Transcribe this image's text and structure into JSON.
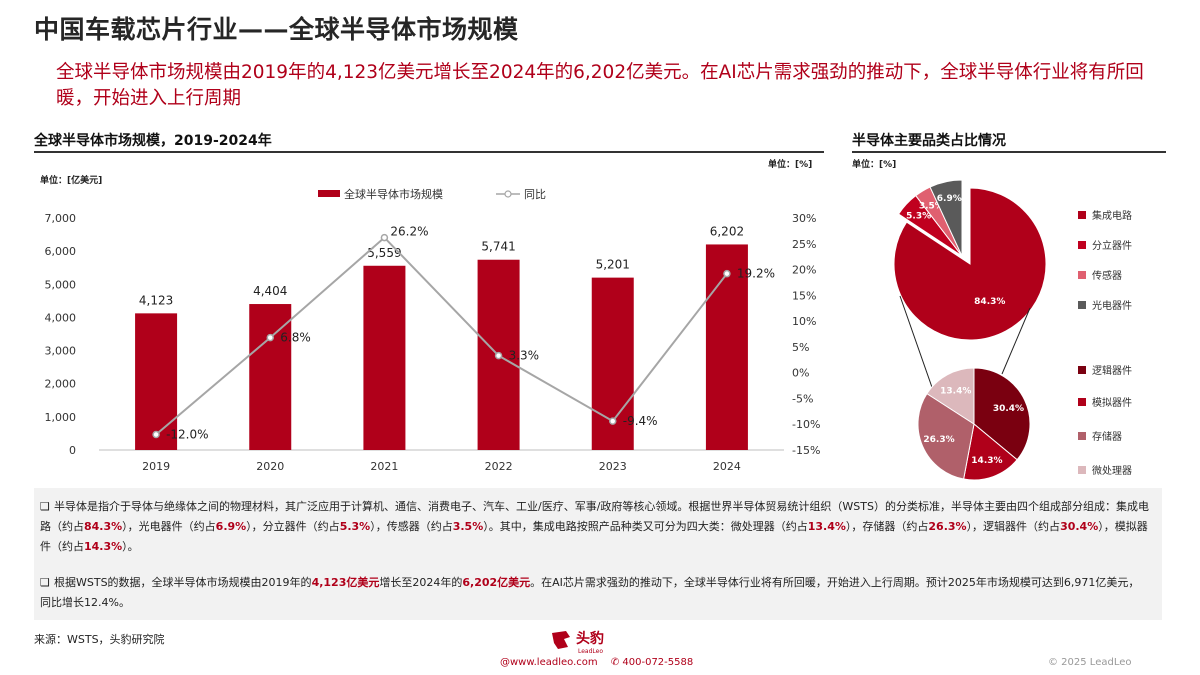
{
  "page": {
    "title": "中国车载芯片行业——全球半导体市场规模",
    "subtitle": "全球半导体市场规模由2019年的4,123亿美元增长至2024年的6,202亿美元。在AI芯片需求强劲的推动下，全球半导体行业将有所回暖，开始进入上行周期"
  },
  "left_panel": {
    "heading": "全球半导体市场规模，2019-2024年",
    "unit_left": "单位：[亿美元]",
    "unit_right": "单位：[%]"
  },
  "right_panel": {
    "heading": "半导体主要品类占比情况",
    "unit": "单位：[%]"
  },
  "chart_data": [
    {
      "type": "bar",
      "categories": [
        "2019",
        "2020",
        "2021",
        "2022",
        "2023",
        "2024"
      ],
      "series": [
        {
          "name": "全球半导体市场规模",
          "kind": "bar",
          "axis": "left",
          "values": [
            4123,
            4404,
            5559,
            5741,
            5201,
            6202
          ],
          "labels": [
            "4,123",
            "4,404",
            "5,559",
            "5,741",
            "5,201",
            "6,202"
          ]
        },
        {
          "name": "同比",
          "kind": "line",
          "axis": "right",
          "values": [
            -12.0,
            6.8,
            26.2,
            3.3,
            -9.4,
            19.2
          ],
          "labels": [
            "-12.0%",
            "6.8%",
            "26.2%",
            "3.3%",
            "-9.4%",
            "19.2%"
          ]
        }
      ],
      "ylim": [
        0,
        7000
      ],
      "yticks": [
        "0",
        "1,000",
        "2,000",
        "3,000",
        "4,000",
        "5,000",
        "6,000",
        "7,000"
      ],
      "y2lim": [
        -15,
        30
      ],
      "y2ticks": [
        "-15%",
        "-10%",
        "-5%",
        "0%",
        "5%",
        "10%",
        "15%",
        "20%",
        "25%",
        "30%"
      ],
      "legend_position": "top-center",
      "grid": false,
      "colors": {
        "bar": "#b0001a",
        "line": "#a6a6a6"
      }
    },
    {
      "type": "pie",
      "title": "",
      "slices": [
        {
          "name": "集成电路",
          "value": 84.3,
          "label": "84.3%",
          "color": "#b0001a"
        },
        {
          "name": "分立器件",
          "value": 5.3,
          "label": "5.3%",
          "color": "#c0001f"
        },
        {
          "name": "传感器",
          "value": 3.5,
          "label": "3.5%",
          "color": "#e06070"
        },
        {
          "name": "光电器件",
          "value": 6.9,
          "label": "6.9%",
          "color": "#5a5a5a"
        }
      ],
      "exploded_slice": "集成电路"
    },
    {
      "type": "pie",
      "title": "",
      "slices": [
        {
          "name": "逻辑器件",
          "value": 30.4,
          "label": "30.4%",
          "color": "#7a0010"
        },
        {
          "name": "模拟器件",
          "value": 14.3,
          "label": "14.3%",
          "color": "#b0001a"
        },
        {
          "name": "存储器",
          "value": 26.3,
          "label": "26.3%",
          "color": "#b0606a"
        },
        {
          "name": "微处理器",
          "value": 13.4,
          "label": "13.4%",
          "color": "#dcb8bc"
        }
      ]
    }
  ],
  "notes": {
    "note1": {
      "parts": [
        {
          "t": "半导体是指介于导体与绝缘体之间的物理材料，其广泛应用于计算机、通信、消费电子、汽车、工业/医疗、军事/政府等核心领域。根据世界半导体贸易统计组织（WSTS）的分类标准，半导体主要由四个组成部分组成：集成电路（约占",
          "h": false
        },
        {
          "t": "84.3%",
          "h": true
        },
        {
          "t": "），光电器件（约占",
          "h": false
        },
        {
          "t": "6.9%",
          "h": true
        },
        {
          "t": "），分立器件（约占",
          "h": false
        },
        {
          "t": "5.3%",
          "h": true
        },
        {
          "t": "），传感器（约占",
          "h": false
        },
        {
          "t": "3.5%",
          "h": true
        },
        {
          "t": "）。其中，集成电路按照产品种类又可分为四大类：微处理器（约占",
          "h": false
        },
        {
          "t": "13.4%",
          "h": true
        },
        {
          "t": "），存储器（约占",
          "h": false
        },
        {
          "t": "26.3%",
          "h": true
        },
        {
          "t": "），逻辑器件（约占",
          "h": false
        },
        {
          "t": "30.4%",
          "h": true
        },
        {
          "t": "），模拟器件（约占",
          "h": false
        },
        {
          "t": "14.3%",
          "h": true
        },
        {
          "t": "）。",
          "h": false
        }
      ]
    },
    "note2": {
      "parts": [
        {
          "t": "根据WSTS的数据，全球半导体市场规模由2019年的",
          "h": false
        },
        {
          "t": "4,123亿美元",
          "h": true
        },
        {
          "t": "增长至2024年的",
          "h": false
        },
        {
          "t": "6,202亿美元",
          "h": true
        },
        {
          "t": "。在AI芯片需求强劲的推动下，全球半导体行业将有所回暖，开始进入上行周期。预计2025年市场规模可达到6,971亿美元，同比增长12.4%。",
          "h": false
        }
      ]
    }
  },
  "footer": {
    "source": "来源：WSTS，头豹研究院",
    "logo_text": "头豹",
    "logo_sub": "LeadLeo",
    "website": "@www.leadleo.com",
    "phone": "400-072-5588",
    "copyright": "© 2025 LeadLeo",
    "colors": {
      "brand": "#b0001a"
    }
  }
}
